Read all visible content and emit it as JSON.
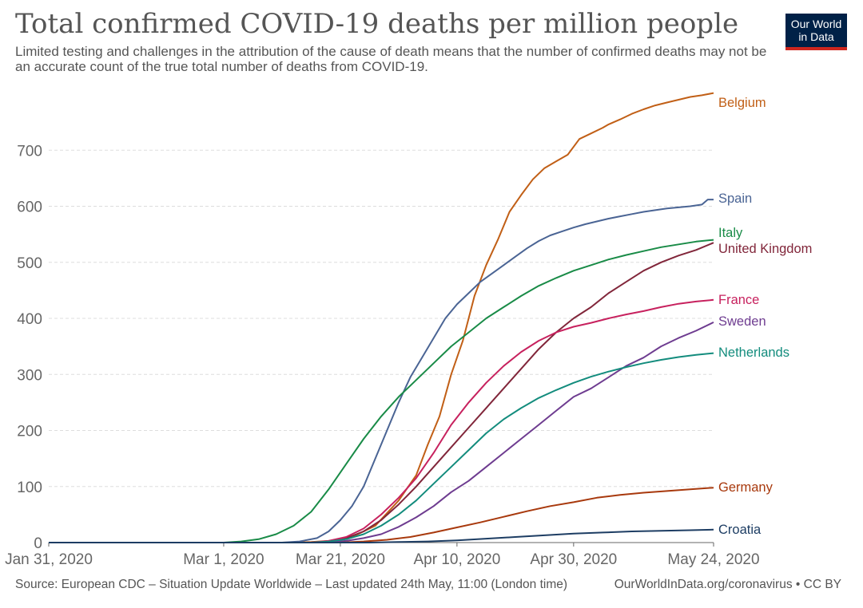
{
  "header": {
    "title": "Total confirmed COVID-19 deaths per million people",
    "subtitle": "Limited testing and challenges in the attribution of the cause of death means that the number of confirmed deaths may not be an accurate count of the true total number of deaths from COVID-19.",
    "logo_line1": "Our World",
    "logo_line2": "in Data"
  },
  "footer": {
    "source": "Source: European CDC – Situation Update Worldwide – Last updated 24th May, 11:00 (London time)",
    "credit": "OurWorldInData.org/coronavirus • CC BY"
  },
  "colors": {
    "Belgium": "#c15f16",
    "Spain": "#4a6494",
    "Italy": "#198b47",
    "United Kingdom": "#81263a",
    "France": "#c7215e",
    "Sweden": "#6e3c90",
    "Netherlands": "#138c7d",
    "Germany": "#a8390d",
    "Croatia": "#1d3d63",
    "grid": "#dddddd",
    "axis": "#666666"
  },
  "chart_data": {
    "type": "line",
    "title": "Total confirmed COVID-19 deaths per million people",
    "xlabel": "",
    "ylabel": "",
    "x_unit": "days since Jan 31, 2020",
    "xlim": [
      0,
      114
    ],
    "ylim": [
      0,
      800
    ],
    "x_ticks": [
      {
        "x": 0,
        "label": "Jan 31, 2020"
      },
      {
        "x": 30,
        "label": "Mar 1, 2020"
      },
      {
        "x": 50,
        "label": "Mar 21, 2020"
      },
      {
        "x": 70,
        "label": "Apr 10, 2020"
      },
      {
        "x": 90,
        "label": "Apr 30, 2020"
      },
      {
        "x": 114,
        "label": "May 24, 2020"
      }
    ],
    "y_ticks": [
      0,
      100,
      200,
      300,
      400,
      500,
      600,
      700
    ],
    "grid": true,
    "legend": "right-end labels",
    "series": [
      {
        "name": "Belgium",
        "x": [
          0,
          40,
          45,
          48,
          52,
          56,
          60,
          63,
          65,
          67,
          69,
          71,
          73,
          75,
          77,
          79,
          81,
          83,
          85,
          87,
          89,
          91,
          93,
          95,
          96,
          98,
          100,
          102,
          104,
          106,
          108,
          110,
          112,
          114
        ],
        "values": [
          0,
          0,
          1,
          3,
          10,
          30,
          75,
          120,
          175,
          225,
          300,
          360,
          440,
          495,
          540,
          590,
          620,
          648,
          668,
          680,
          692,
          720,
          730,
          740,
          746,
          755,
          765,
          773,
          780,
          785,
          790,
          795,
          798,
          802
        ]
      },
      {
        "name": "Spain",
        "x": [
          0,
          40,
          43,
          46,
          48,
          50,
          52,
          54,
          56,
          58,
          60,
          62,
          64,
          66,
          68,
          70,
          72,
          74,
          76,
          78,
          80,
          82,
          84,
          86,
          88,
          90,
          92,
          94,
          96,
          98,
          100,
          102,
          104,
          106,
          108,
          110,
          112,
          113,
          114
        ],
        "values": [
          0,
          0,
          2,
          8,
          20,
          40,
          65,
          100,
          150,
          200,
          250,
          295,
          330,
          365,
          400,
          425,
          445,
          465,
          480,
          495,
          510,
          525,
          538,
          548,
          555,
          562,
          568,
          573,
          578,
          582,
          586,
          590,
          593,
          596,
          598,
          600,
          603,
          612,
          612
        ]
      },
      {
        "name": "Italy",
        "x": [
          0,
          30,
          33,
          36,
          39,
          42,
          45,
          48,
          51,
          54,
          57,
          60,
          63,
          66,
          69,
          72,
          75,
          78,
          81,
          84,
          87,
          90,
          93,
          96,
          99,
          102,
          105,
          108,
          111,
          114
        ],
        "values": [
          0,
          0,
          2,
          6,
          15,
          30,
          55,
          95,
          140,
          185,
          225,
          260,
          290,
          320,
          350,
          375,
          400,
          420,
          440,
          458,
          472,
          485,
          495,
          505,
          513,
          520,
          527,
          532,
          537,
          540
        ]
      },
      {
        "name": "United Kingdom",
        "x": [
          0,
          45,
          48,
          51,
          54,
          57,
          60,
          63,
          66,
          69,
          72,
          75,
          78,
          81,
          84,
          87,
          90,
          93,
          96,
          99,
          102,
          105,
          108,
          111,
          114
        ],
        "values": [
          0,
          0,
          2,
          8,
          20,
          40,
          68,
          100,
          135,
          170,
          205,
          240,
          275,
          310,
          345,
          375,
          400,
          420,
          445,
          465,
          485,
          500,
          512,
          522,
          535
        ]
      },
      {
        "name": "France",
        "x": [
          0,
          45,
          48,
          51,
          54,
          57,
          60,
          63,
          66,
          69,
          72,
          75,
          78,
          81,
          84,
          87,
          90,
          93,
          96,
          99,
          102,
          105,
          108,
          111,
          114
        ],
        "values": [
          0,
          0,
          3,
          10,
          25,
          50,
          80,
          115,
          160,
          210,
          250,
          285,
          315,
          340,
          360,
          375,
          385,
          392,
          400,
          407,
          413,
          420,
          426,
          430,
          433
        ]
      },
      {
        "name": "Sweden",
        "x": [
          0,
          45,
          48,
          51,
          54,
          57,
          60,
          63,
          66,
          69,
          72,
          75,
          78,
          81,
          84,
          87,
          90,
          93,
          96,
          99,
          102,
          105,
          108,
          111,
          114
        ],
        "values": [
          0,
          0,
          1,
          3,
          8,
          15,
          28,
          45,
          65,
          90,
          110,
          135,
          160,
          185,
          210,
          235,
          260,
          275,
          295,
          315,
          330,
          350,
          365,
          378,
          393
        ]
      },
      {
        "name": "Netherlands",
        "x": [
          0,
          45,
          48,
          51,
          54,
          57,
          60,
          63,
          66,
          69,
          72,
          75,
          78,
          81,
          84,
          87,
          90,
          93,
          96,
          99,
          102,
          105,
          108,
          111,
          114
        ],
        "values": [
          0,
          0,
          2,
          6,
          15,
          30,
          50,
          75,
          105,
          135,
          165,
          195,
          220,
          240,
          258,
          272,
          285,
          296,
          305,
          313,
          320,
          326,
          331,
          335,
          338
        ]
      },
      {
        "name": "Germany",
        "x": [
          0,
          50,
          54,
          58,
          62,
          66,
          70,
          74,
          78,
          82,
          86,
          90,
          94,
          98,
          102,
          106,
          110,
          114
        ],
        "values": [
          0,
          0,
          2,
          5,
          10,
          18,
          27,
          36,
          46,
          56,
          65,
          72,
          80,
          85,
          89,
          92,
          95,
          98
        ]
      },
      {
        "name": "Croatia",
        "x": [
          0,
          55,
          60,
          65,
          70,
          75,
          80,
          85,
          90,
          95,
          100,
          105,
          110,
          114
        ],
        "values": [
          0,
          0,
          1,
          2,
          4,
          7,
          10,
          13,
          16,
          18,
          20,
          21,
          22,
          23
        ]
      }
    ]
  }
}
